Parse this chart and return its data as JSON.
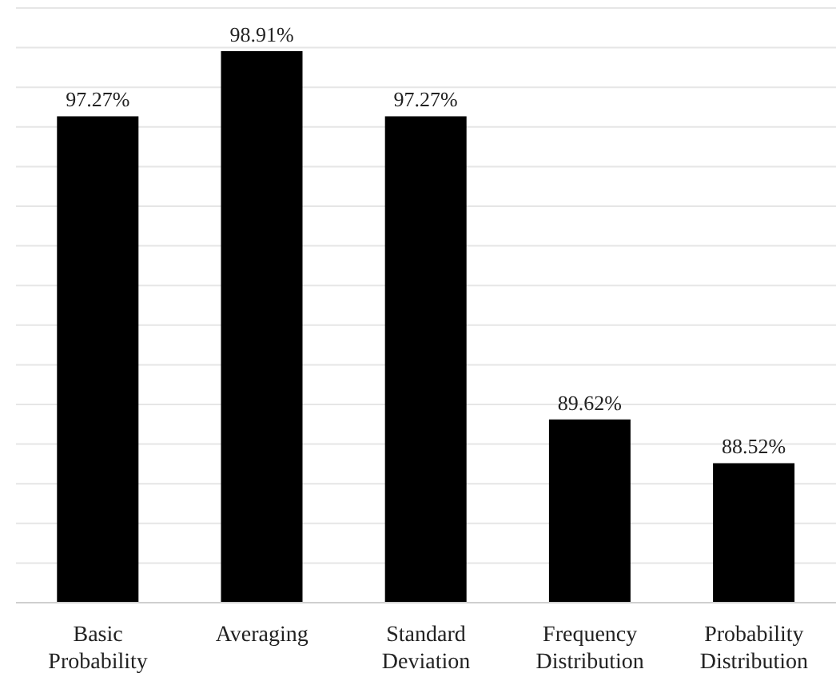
{
  "chart_data": {
    "type": "bar",
    "categories": [
      "Basic Probability",
      "Averaging",
      "Standard Deviation",
      "Frequency Distribution",
      "Probability Distribution"
    ],
    "values": [
      97.27,
      98.91,
      97.27,
      89.62,
      88.52
    ],
    "value_labels": [
      "97.27%",
      "98.91%",
      "97.27%",
      "89.62%",
      "88.52%"
    ],
    "color": "#000000",
    "ylim": [
      85,
      100
    ],
    "yticks": [
      {
        "value": 85,
        "label": null
      },
      {
        "value": 86,
        "label": null
      },
      {
        "value": 87,
        "label": null
      },
      {
        "value": 88,
        "label": null
      },
      {
        "value": 89,
        "label": null
      },
      {
        "value": 90,
        "label": null
      },
      {
        "value": 91,
        "label": null
      },
      {
        "value": 92,
        "label": null
      },
      {
        "value": 93,
        "label": null
      },
      {
        "value": 94,
        "label": null
      },
      {
        "value": 95,
        "label": null
      },
      {
        "value": 96,
        "label": null
      },
      {
        "value": 97,
        "label": null
      },
      {
        "value": 98,
        "label": null
      },
      {
        "value": 99,
        "label": null
      },
      {
        "value": 100,
        "label": null
      }
    ],
    "grid": "y",
    "tick_labels": "x"
  }
}
